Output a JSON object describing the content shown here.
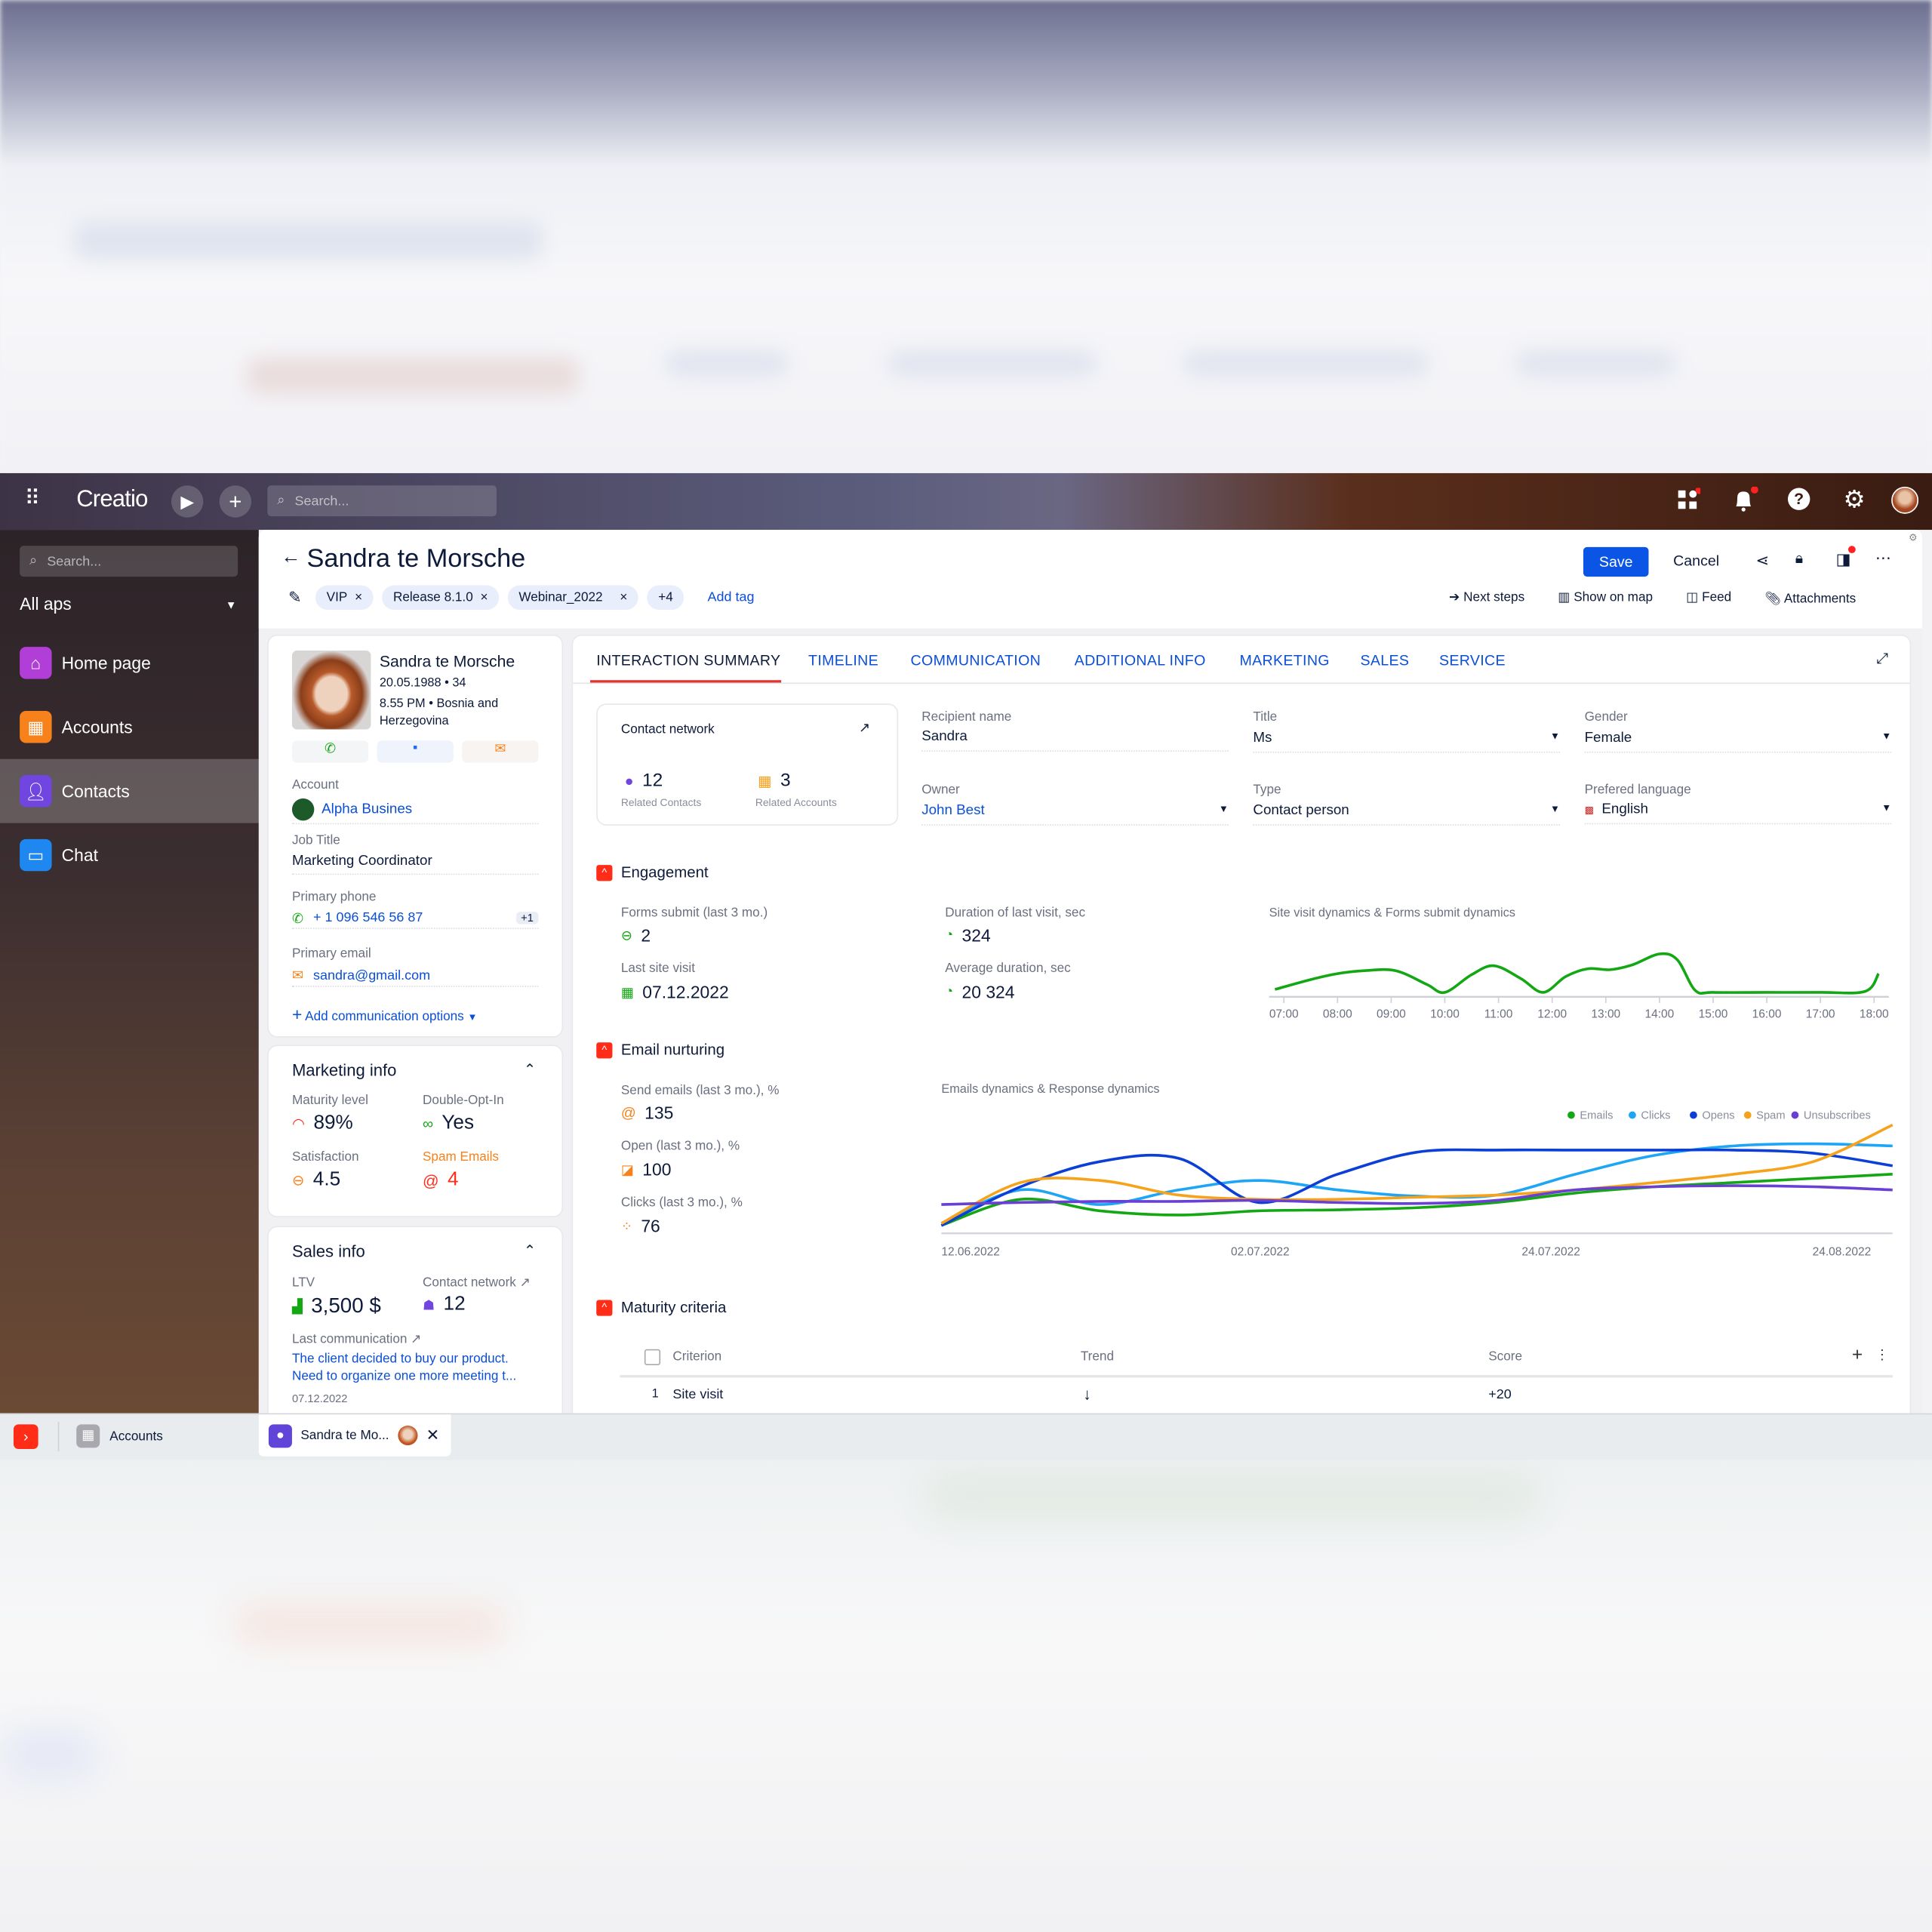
{
  "topbar": {
    "brand": "Creatio",
    "search_placeholder": "Search..."
  },
  "sidebar": {
    "search_placeholder": "Search...",
    "apps_selector": "All aps",
    "items": [
      {
        "label": "Home page",
        "color": "#b23ed8"
      },
      {
        "label": "Accounts",
        "color": "#f7821b"
      },
      {
        "label": "Contacts",
        "color": "#7045e0"
      },
      {
        "label": "Chat",
        "color": "#1e88f0"
      }
    ]
  },
  "header": {
    "title": "Sandra te Morsche",
    "tags": [
      "VIP",
      "Release 8.1.0",
      "Webinar_2022"
    ],
    "more_tags": "+4",
    "add_tag": "Add tag",
    "save": "Save",
    "cancel": "Cancel",
    "actions": [
      "Next steps",
      "Show on map",
      "Feed",
      "Attachments"
    ]
  },
  "profile": {
    "name": "Sandra te Morsche",
    "birth": "20.05.1988 • 34",
    "location": "8.55 PM • Bosnia and Herzegovina",
    "account_label": "Account",
    "account": "Alpha Busines",
    "job_label": "Job Title",
    "job": "Marketing Coordinator",
    "phone_label": "Primary phone",
    "phone": "+ 1 096 546 56 87",
    "phone_more": "+1",
    "email_label": "Primary email",
    "email": "sandra@gmail.com",
    "add_comm": "Add communication options"
  },
  "marketing": {
    "title": "Marketing info",
    "maturity_label": "Maturity level",
    "maturity": "89%",
    "optin_label": "Double-Opt-In",
    "optin": "Yes",
    "satisfaction_label": "Satisfaction",
    "satisfaction": "4.5",
    "spam_label": "Spam Emails",
    "spam": "4"
  },
  "sales": {
    "title": "Sales info",
    "ltv_label": "LTV",
    "ltv": "3,500 $",
    "network_label": "Contact network",
    "network": "12",
    "lastcomm_label": "Last communication",
    "lastcomm_line1": "The client decided to buy our product.",
    "lastcomm_line2": "Need to  organize one more meeting t...",
    "lastcomm_date": "07.12.2022"
  },
  "tabs": [
    "INTERACTION SUMMARY",
    "TIMELINE",
    "COMMUNICATION",
    "ADDITIONAL INFO",
    "MARKETING",
    "SALES",
    "SERVICE"
  ],
  "contact_network": {
    "title": "Contact network",
    "contacts": "12",
    "contacts_label": "Related Contacts",
    "accounts": "3",
    "accounts_label": "Related Accounts"
  },
  "fields": {
    "recipient_label": "Recipient name",
    "recipient": "Sandra",
    "title_label": "Title",
    "title": "Ms",
    "gender_label": "Gender",
    "gender": "Female",
    "owner_label": "Owner",
    "owner": "John Best",
    "type_label": "Type",
    "type": "Contact person",
    "lang_label": "Prefered language",
    "lang": "English"
  },
  "engagement": {
    "title": "Engagement",
    "forms_label": "Forms submit (last 3 mo.)",
    "forms": "2",
    "lastvisit_label": "Last site visit",
    "lastvisit": "07.12.2022",
    "duration_label": "Duration of last visit, sec",
    "duration": "324",
    "avg_label": "Average duration, sec",
    "avg": "20 324"
  },
  "email_nurturing": {
    "title": "Email nurturing",
    "send_label": "Send emails (last 3 mo.), %",
    "send": "135",
    "open_label": "Open (last 3 mo.), %",
    "open": "100",
    "clicks_label": "Clicks (last 3 mo.), %",
    "clicks": "76"
  },
  "maturity_criteria": {
    "title": "Maturity criteria",
    "columns": [
      "Criterion",
      "Trend",
      "Score"
    ],
    "rows": [
      {
        "num": "1",
        "criterion": "Site visit",
        "trend": "down",
        "score": "+20"
      }
    ]
  },
  "taskbar": {
    "tabs": [
      "Accounts",
      "Sandra te Mo..."
    ]
  },
  "chart_data": [
    {
      "type": "line",
      "title": "Site visit dynamics & Forms submit dynamics",
      "tick_labels": [
        "07:00",
        "08:00",
        "09:00",
        "10:00",
        "11:00",
        "12:00",
        "13:00",
        "14:00",
        "15:00",
        "16:00",
        "17:00",
        "18:00"
      ],
      "grid": false,
      "series": [
        {
          "color": "#13a813",
          "x": [
            "06:50",
            "07:30",
            "08:00",
            "08:30",
            "09:05",
            "09:40",
            "10:00",
            "10:30",
            "10:55",
            "11:25",
            "11:50",
            "12:15",
            "12:40",
            "13:05",
            "13:30",
            "14:00",
            "14:20",
            "14:40",
            "15:00",
            "16:00",
            "17:00",
            "17:50",
            "18:05"
          ],
          "y": [
            10,
            30,
            42,
            48,
            48,
            20,
            4,
            40,
            58,
            32,
            4,
            36,
            52,
            50,
            60,
            82,
            70,
            8,
            4,
            4,
            4,
            6,
            42
          ]
        }
      ]
    },
    {
      "type": "line",
      "title": "Emails dynamics & Response dynamics",
      "tick_labels": [
        "12.06.2022",
        "02.07.2022",
        "24.07.2022",
        "24.08.2022"
      ],
      "legend": "top-right",
      "grid": false,
      "series": [
        {
          "name": "Emails",
          "color": "#13a813",
          "values": [
            4,
            29,
            18,
            14,
            18,
            19,
            21,
            26,
            35,
            41,
            45,
            49,
            53
          ]
        },
        {
          "name": "Clicks",
          "color": "#1ea5f5",
          "values": [
            6,
            38,
            24,
            38,
            47,
            38,
            32,
            33,
            53,
            71,
            80,
            82,
            80
          ]
        },
        {
          "name": "Opens",
          "color": "#0b3fd6",
          "values": [
            4,
            41,
            65,
            68,
            26,
            53,
            74,
            76,
            76,
            76,
            76,
            73,
            61
          ]
        },
        {
          "name": "Spam",
          "color": "#f7a21b",
          "values": [
            6,
            45,
            47,
            33,
            29,
            29,
            31,
            33,
            38,
            45,
            53,
            65,
            100
          ]
        },
        {
          "name": "Unsubscribes",
          "color": "#6a3fd4",
          "values": [
            24,
            26,
            27,
            27,
            28,
            26,
            25,
            28,
            38,
            41,
            42,
            41,
            38
          ]
        }
      ]
    }
  ]
}
